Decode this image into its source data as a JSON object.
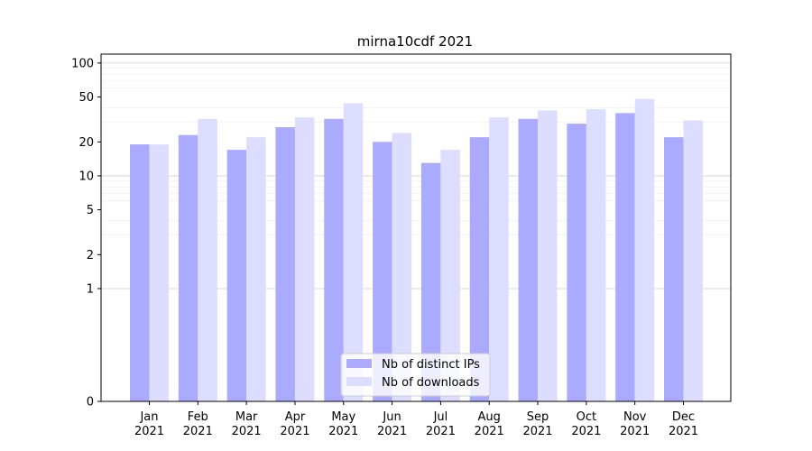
{
  "chart_data": {
    "type": "bar",
    "title": "mirna10cdf 2021",
    "xlabel": "",
    "ylabel": "",
    "yscale": "symlog",
    "ylim": [
      0,
      120
    ],
    "yticks": [
      0,
      1,
      2,
      5,
      10,
      20,
      50,
      100
    ],
    "ytick_labels": [
      "0",
      "1",
      "2",
      "5",
      "10",
      "20",
      "50",
      "100"
    ],
    "grid": true,
    "legend_position": "lower-center",
    "categories": [
      {
        "month": "Jan",
        "year": "2021"
      },
      {
        "month": "Feb",
        "year": "2021"
      },
      {
        "month": "Mar",
        "year": "2021"
      },
      {
        "month": "Apr",
        "year": "2021"
      },
      {
        "month": "May",
        "year": "2021"
      },
      {
        "month": "Jun",
        "year": "2021"
      },
      {
        "month": "Jul",
        "year": "2021"
      },
      {
        "month": "Aug",
        "year": "2021"
      },
      {
        "month": "Sep",
        "year": "2021"
      },
      {
        "month": "Oct",
        "year": "2021"
      },
      {
        "month": "Nov",
        "year": "2021"
      },
      {
        "month": "Dec",
        "year": "2021"
      }
    ],
    "series": [
      {
        "name": "Nb of distinct IPs",
        "color": "#aaaaff",
        "values": [
          19,
          23,
          17,
          27,
          32,
          20,
          13,
          22,
          32,
          29,
          36,
          22
        ]
      },
      {
        "name": "Nb of downloads",
        "color": "#ddddff",
        "values": [
          19,
          32,
          22,
          33,
          44,
          24,
          17,
          33,
          38,
          39,
          48,
          31
        ]
      }
    ]
  }
}
